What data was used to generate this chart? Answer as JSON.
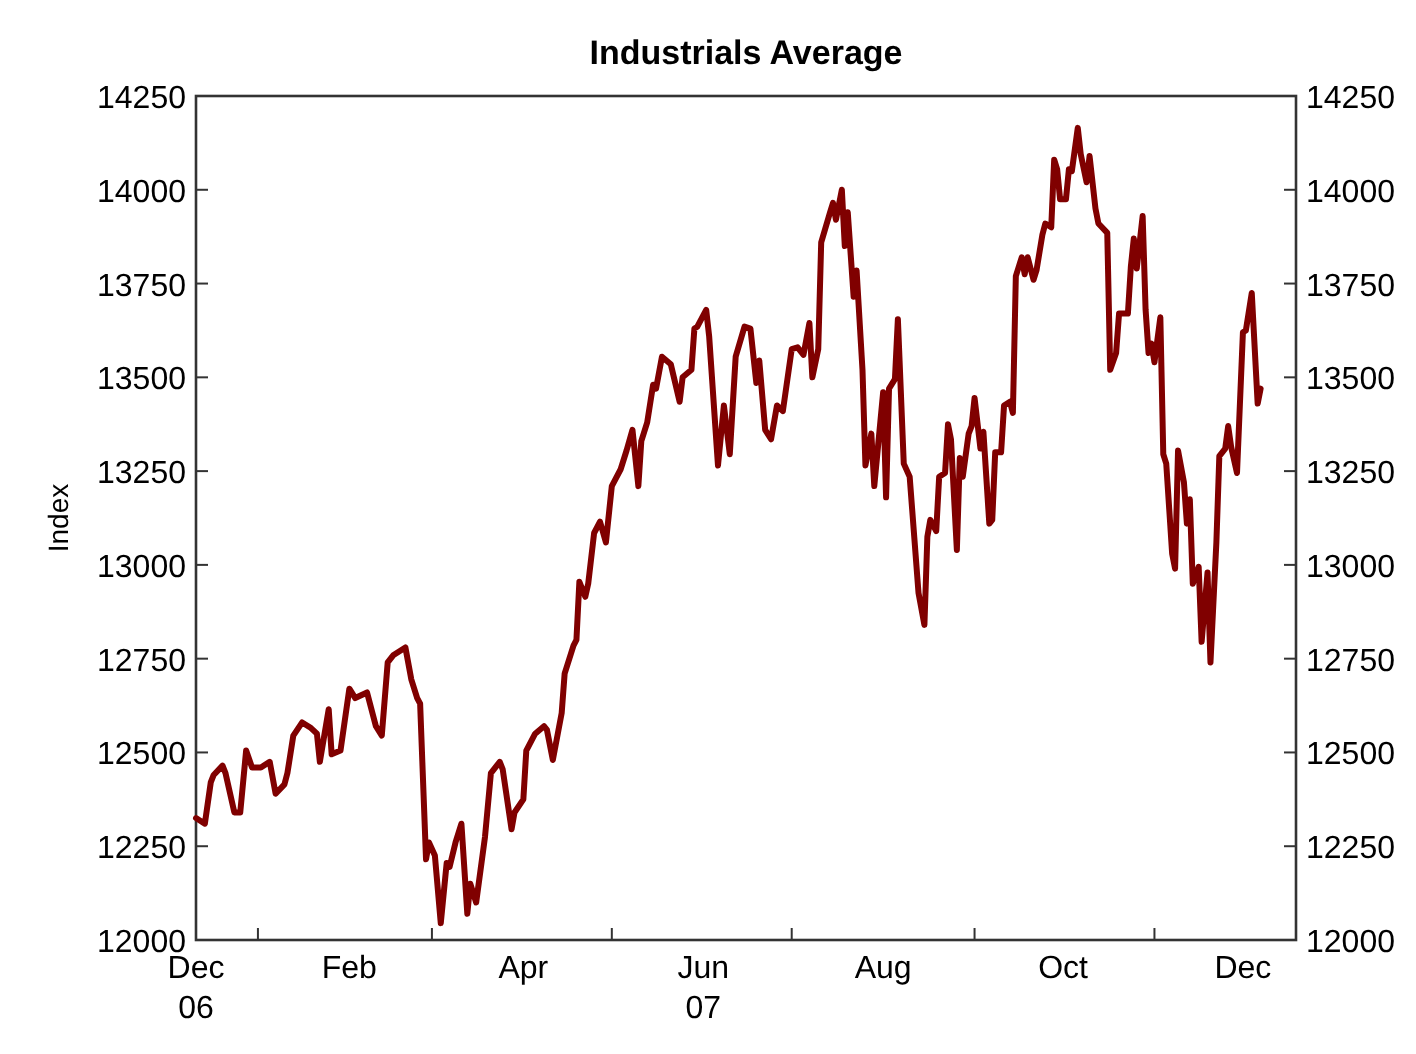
{
  "chart_data": {
    "type": "line",
    "title": "Industrials Average",
    "ylabel": "Index",
    "grid": false,
    "marker": "none",
    "line_style": "solid",
    "xlim": [
      "2006-12-11",
      "2007-12-19"
    ],
    "xticks": [
      {
        "value": "2006-12-11",
        "label": "Dec\n06"
      },
      {
        "value": "2007-01-01",
        "label": null
      },
      {
        "value": "2007-02-01",
        "label": "Feb"
      },
      {
        "value": "2007-03-01",
        "label": null
      },
      {
        "value": "2007-04-01",
        "label": "Apr"
      },
      {
        "value": "2007-05-01",
        "label": null
      },
      {
        "value": "2007-06-01",
        "label": "Jun\n07"
      },
      {
        "value": "2007-07-01",
        "label": null
      },
      {
        "value": "2007-08-01",
        "label": "Aug"
      },
      {
        "value": "2007-09-01",
        "label": null
      },
      {
        "value": "2007-10-01",
        "label": "Oct"
      },
      {
        "value": "2007-11-01",
        "label": null
      },
      {
        "value": "2007-12-01",
        "label": "Dec"
      }
    ],
    "ylim": [
      12000,
      14250
    ],
    "yticks": [
      12000,
      12250,
      12500,
      12750,
      13000,
      13250,
      13500,
      13750,
      14000,
      14250
    ],
    "y2lim": [
      12000,
      14250
    ],
    "y2ticks": [
      12000,
      12250,
      12500,
      12750,
      13000,
      13250,
      13500,
      13750,
      14000,
      14250
    ],
    "x": [
      "2006-12-11",
      "2006-12-14",
      "2006-12-16",
      "2006-12-17",
      "2006-12-20",
      "2006-12-21",
      "2006-12-24",
      "2006-12-26",
      "2006-12-28",
      "2006-12-30",
      "2007-01-02",
      "2007-01-05",
      "2007-01-07",
      "2007-01-10",
      "2007-01-11",
      "2007-01-13",
      "2007-01-16",
      "2007-01-19",
      "2007-01-21",
      "2007-01-22",
      "2007-01-25",
      "2007-01-26",
      "2007-01-29",
      "2007-02-01",
      "2007-02-03",
      "2007-02-07",
      "2007-02-10",
      "2007-02-12",
      "2007-02-14",
      "2007-02-16",
      "2007-02-20",
      "2007-02-22",
      "2007-02-24",
      "2007-02-25",
      "2007-02-27",
      "2007-02-28",
      "2007-03-02",
      "2007-03-04",
      "2007-03-06",
      "2007-03-07",
      "2007-03-09",
      "2007-03-11",
      "2007-03-13",
      "2007-03-14",
      "2007-03-16",
      "2007-03-19",
      "2007-03-21",
      "2007-03-24",
      "2007-03-25",
      "2007-03-28",
      "2007-03-29",
      "2007-04-01",
      "2007-04-02",
      "2007-04-05",
      "2007-04-08",
      "2007-04-09",
      "2007-04-11",
      "2007-04-14",
      "2007-04-15",
      "2007-04-18",
      "2007-04-19",
      "2007-04-20",
      "2007-04-22",
      "2007-04-23",
      "2007-04-25",
      "2007-04-27",
      "2007-04-29",
      "2007-05-01",
      "2007-05-04",
      "2007-05-06",
      "2007-05-08",
      "2007-05-10",
      "2007-05-11",
      "2007-05-13",
      "2007-05-15",
      "2007-05-16",
      "2007-05-18",
      "2007-05-21",
      "2007-05-24",
      "2007-05-25",
      "2007-05-28",
      "2007-05-29",
      "2007-05-30",
      "2007-06-02",
      "2007-06-03",
      "2007-06-06",
      "2007-06-08",
      "2007-06-10",
      "2007-06-12",
      "2007-06-15",
      "2007-06-17",
      "2007-06-19",
      "2007-06-20",
      "2007-06-22",
      "2007-06-24",
      "2007-06-26",
      "2007-06-28",
      "2007-07-01",
      "2007-07-03",
      "2007-07-05",
      "2007-07-07",
      "2007-07-08",
      "2007-07-10",
      "2007-07-11",
      "2007-07-14",
      "2007-07-15",
      "2007-07-16",
      "2007-07-18",
      "2007-07-19",
      "2007-07-20",
      "2007-07-22",
      "2007-07-23",
      "2007-07-25",
      "2007-07-26",
      "2007-07-28",
      "2007-07-29",
      "2007-08-01",
      "2007-08-02",
      "2007-08-03",
      "2007-08-05",
      "2007-08-06",
      "2007-08-08",
      "2007-08-10",
      "2007-08-13",
      "2007-08-15",
      "2007-08-16",
      "2007-08-17",
      "2007-08-19",
      "2007-08-20",
      "2007-08-22",
      "2007-08-23",
      "2007-08-24",
      "2007-08-26",
      "2007-08-27",
      "2007-08-28",
      "2007-08-30",
      "2007-08-31",
      "2007-09-01",
      "2007-09-03",
      "2007-09-04",
      "2007-09-06",
      "2007-09-07",
      "2007-09-08",
      "2007-09-10",
      "2007-09-11",
      "2007-09-13",
      "2007-09-14",
      "2007-09-15",
      "2007-09-17",
      "2007-09-18",
      "2007-09-19",
      "2007-09-21",
      "2007-09-22",
      "2007-09-24",
      "2007-09-25",
      "2007-09-27",
      "2007-09-28",
      "2007-09-29",
      "2007-09-30",
      "2007-10-02",
      "2007-10-03",
      "2007-10-04",
      "2007-10-06",
      "2007-10-07",
      "2007-10-09",
      "2007-10-10",
      "2007-10-12",
      "2007-10-13",
      "2007-10-16",
      "2007-10-17",
      "2007-10-19",
      "2007-10-20",
      "2007-10-23",
      "2007-10-24",
      "2007-10-25",
      "2007-10-26",
      "2007-10-28",
      "2007-10-29",
      "2007-10-30",
      "2007-10-31",
      "2007-11-01",
      "2007-11-03",
      "2007-11-04",
      "2007-11-05",
      "2007-11-07",
      "2007-11-08",
      "2007-11-09",
      "2007-11-11",
      "2007-11-12",
      "2007-11-13",
      "2007-11-14",
      "2007-11-16",
      "2007-11-17",
      "2007-11-19",
      "2007-11-20",
      "2007-11-22",
      "2007-11-23",
      "2007-11-25",
      "2007-11-26",
      "2007-11-27",
      "2007-11-29",
      "2007-12-01",
      "2007-12-02",
      "2007-12-04",
      "2007-12-06",
      "2007-12-07"
    ],
    "series": [
      {
        "color": "#800000",
        "values": [
          12325,
          12310,
          12420,
          12440,
          12465,
          12445,
          12340,
          12340,
          12505,
          12460,
          12460,
          12475,
          12390,
          12415,
          12445,
          12545,
          12580,
          12565,
          12550,
          12475,
          12615,
          12495,
          12505,
          12670,
          12645,
          12660,
          12570,
          12545,
          12740,
          12760,
          12780,
          12695,
          12645,
          12630,
          12215,
          12260,
          12225,
          12045,
          12205,
          12195,
          12260,
          12310,
          12070,
          12150,
          12100,
          12275,
          12445,
          12475,
          12455,
          12295,
          12340,
          12375,
          12505,
          12550,
          12570,
          12560,
          12480,
          12605,
          12710,
          12785,
          12800,
          12955,
          12915,
          12950,
          13085,
          13115,
          13060,
          13210,
          13255,
          13305,
          13360,
          13210,
          13330,
          13380,
          13480,
          13470,
          13555,
          13535,
          13435,
          13500,
          13520,
          13630,
          13635,
          13680,
          13610,
          13265,
          13425,
          13295,
          13555,
          13635,
          13630,
          13485,
          13545,
          13360,
          13335,
          13425,
          13410,
          13575,
          13580,
          13560,
          13645,
          13500,
          13575,
          13860,
          13940,
          13965,
          13920,
          14000,
          13850,
          13940,
          13715,
          13785,
          13520,
          13265,
          13350,
          13210,
          13460,
          13180,
          13470,
          13495,
          13655,
          13270,
          13235,
          12925,
          12840,
          13075,
          13120,
          13090,
          13235,
          13245,
          13375,
          13335,
          13040,
          13285,
          13235,
          13350,
          13370,
          13445,
          13310,
          13355,
          13110,
          13120,
          13300,
          13300,
          13425,
          13435,
          13405,
          13770,
          13820,
          13775,
          13820,
          13760,
          13785,
          13880,
          13910,
          13900,
          14080,
          14055,
          13975,
          13975,
          14055,
          14050,
          14165,
          14095,
          14020,
          14090,
          13950,
          13910,
          13885,
          13520,
          13565,
          13670,
          13670,
          13795,
          13870,
          13790,
          13930,
          13680,
          13565,
          13590,
          13540,
          13660,
          13295,
          13270,
          13030,
          12990,
          13305,
          13220,
          13110,
          13175,
          12950,
          12995,
          12795,
          12980,
          12740,
          13060,
          13290,
          13310,
          13370,
          13315,
          13245,
          13620,
          13625,
          13725,
          13430,
          13470
        ]
      }
    ]
  }
}
